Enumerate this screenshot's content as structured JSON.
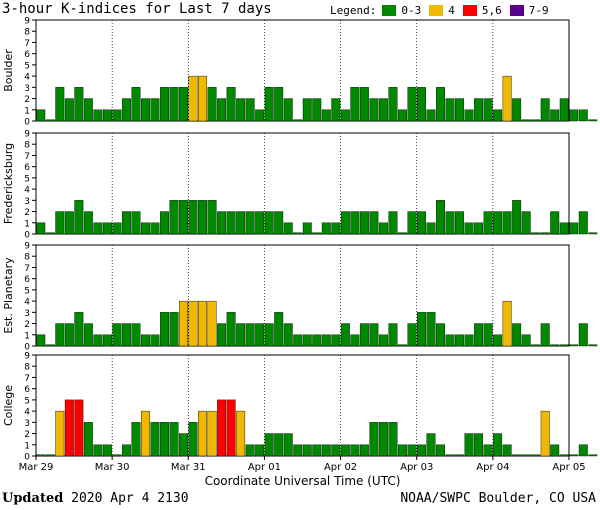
{
  "header": {
    "title": "3-hour K-indices for Last 7 days",
    "legend_label": "Legend:",
    "legend": [
      {
        "label": "0-3",
        "color": "#008800"
      },
      {
        "label": "4",
        "color": "#f0b800"
      },
      {
        "label": "5,6",
        "color": "#ff0000"
      },
      {
        "label": "7-9",
        "color": "#5a0090"
      }
    ]
  },
  "footer": {
    "updated_label": "Updated",
    "updated_value": "2020 Apr  4 2130",
    "source": "NOAA/SWPC Boulder, CO USA"
  },
  "chart_data": {
    "type": "bar",
    "xlabel": "Coordinate Universal Time (UTC)",
    "x_ticks": [
      "Mar 29",
      "Mar 30",
      "Mar 31",
      "Apr 01",
      "Apr 02",
      "Apr 03",
      "Apr 04",
      "Apr 05"
    ],
    "ylim": [
      0,
      9
    ],
    "y_ticks": [
      "0",
      "1",
      "2",
      "3",
      "4",
      "5",
      "6",
      "7",
      "8",
      "9"
    ],
    "bins_per_day": 8,
    "color_scale": {
      "0-3": "#008800",
      "4": "#f0b800",
      "5,6": "#ff0000",
      "7-9": "#5a0090"
    },
    "panels": [
      {
        "name": "Boulder",
        "values": [
          1,
          0,
          3,
          2,
          3,
          2,
          1,
          1,
          1,
          2,
          3,
          2,
          2,
          3,
          3,
          3,
          4,
          4,
          3,
          2,
          3,
          2,
          2,
          1,
          3,
          3,
          2,
          0,
          2,
          2,
          1,
          2,
          1,
          3,
          3,
          2,
          2,
          3,
          1,
          3,
          3,
          1,
          3,
          2,
          2,
          1,
          2,
          2,
          1,
          4,
          2,
          0,
          0,
          2,
          1,
          2,
          1,
          1,
          0
        ]
      },
      {
        "name": "Fredericksburg",
        "values": [
          1,
          0,
          2,
          2,
          3,
          2,
          1,
          1,
          1,
          2,
          2,
          1,
          1,
          2,
          3,
          3,
          3,
          3,
          3,
          2,
          2,
          2,
          2,
          2,
          2,
          2,
          1,
          0,
          1,
          0,
          1,
          1,
          2,
          2,
          2,
          2,
          1,
          2,
          0,
          2,
          2,
          1,
          3,
          2,
          2,
          1,
          1,
          2,
          2,
          2,
          3,
          2,
          0,
          0,
          2,
          1,
          1,
          2,
          0
        ]
      },
      {
        "name": "Est. Planetary",
        "values": [
          1,
          0,
          2,
          2,
          3,
          2,
          1,
          1,
          2,
          2,
          2,
          1,
          1,
          3,
          3,
          4,
          4,
          4,
          4,
          2,
          3,
          2,
          2,
          2,
          2,
          3,
          2,
          1,
          1,
          1,
          1,
          1,
          2,
          1,
          2,
          2,
          1,
          2,
          0,
          2,
          3,
          3,
          2,
          1,
          1,
          1,
          2,
          2,
          1,
          4,
          2,
          1,
          0,
          2,
          0,
          0,
          0,
          2,
          0
        ]
      },
      {
        "name": "College",
        "values": [
          0,
          0,
          4,
          5,
          5,
          3,
          1,
          1,
          0,
          1,
          3,
          4,
          3,
          3,
          3,
          2,
          3,
          4,
          4,
          5,
          5,
          4,
          1,
          1,
          2,
          2,
          2,
          1,
          1,
          1,
          1,
          1,
          1,
          1,
          1,
          3,
          3,
          3,
          1,
          1,
          1,
          2,
          1,
          0,
          0,
          2,
          2,
          1,
          2,
          1,
          0,
          0,
          0,
          4,
          1,
          0,
          0,
          1,
          0
        ]
      }
    ]
  }
}
